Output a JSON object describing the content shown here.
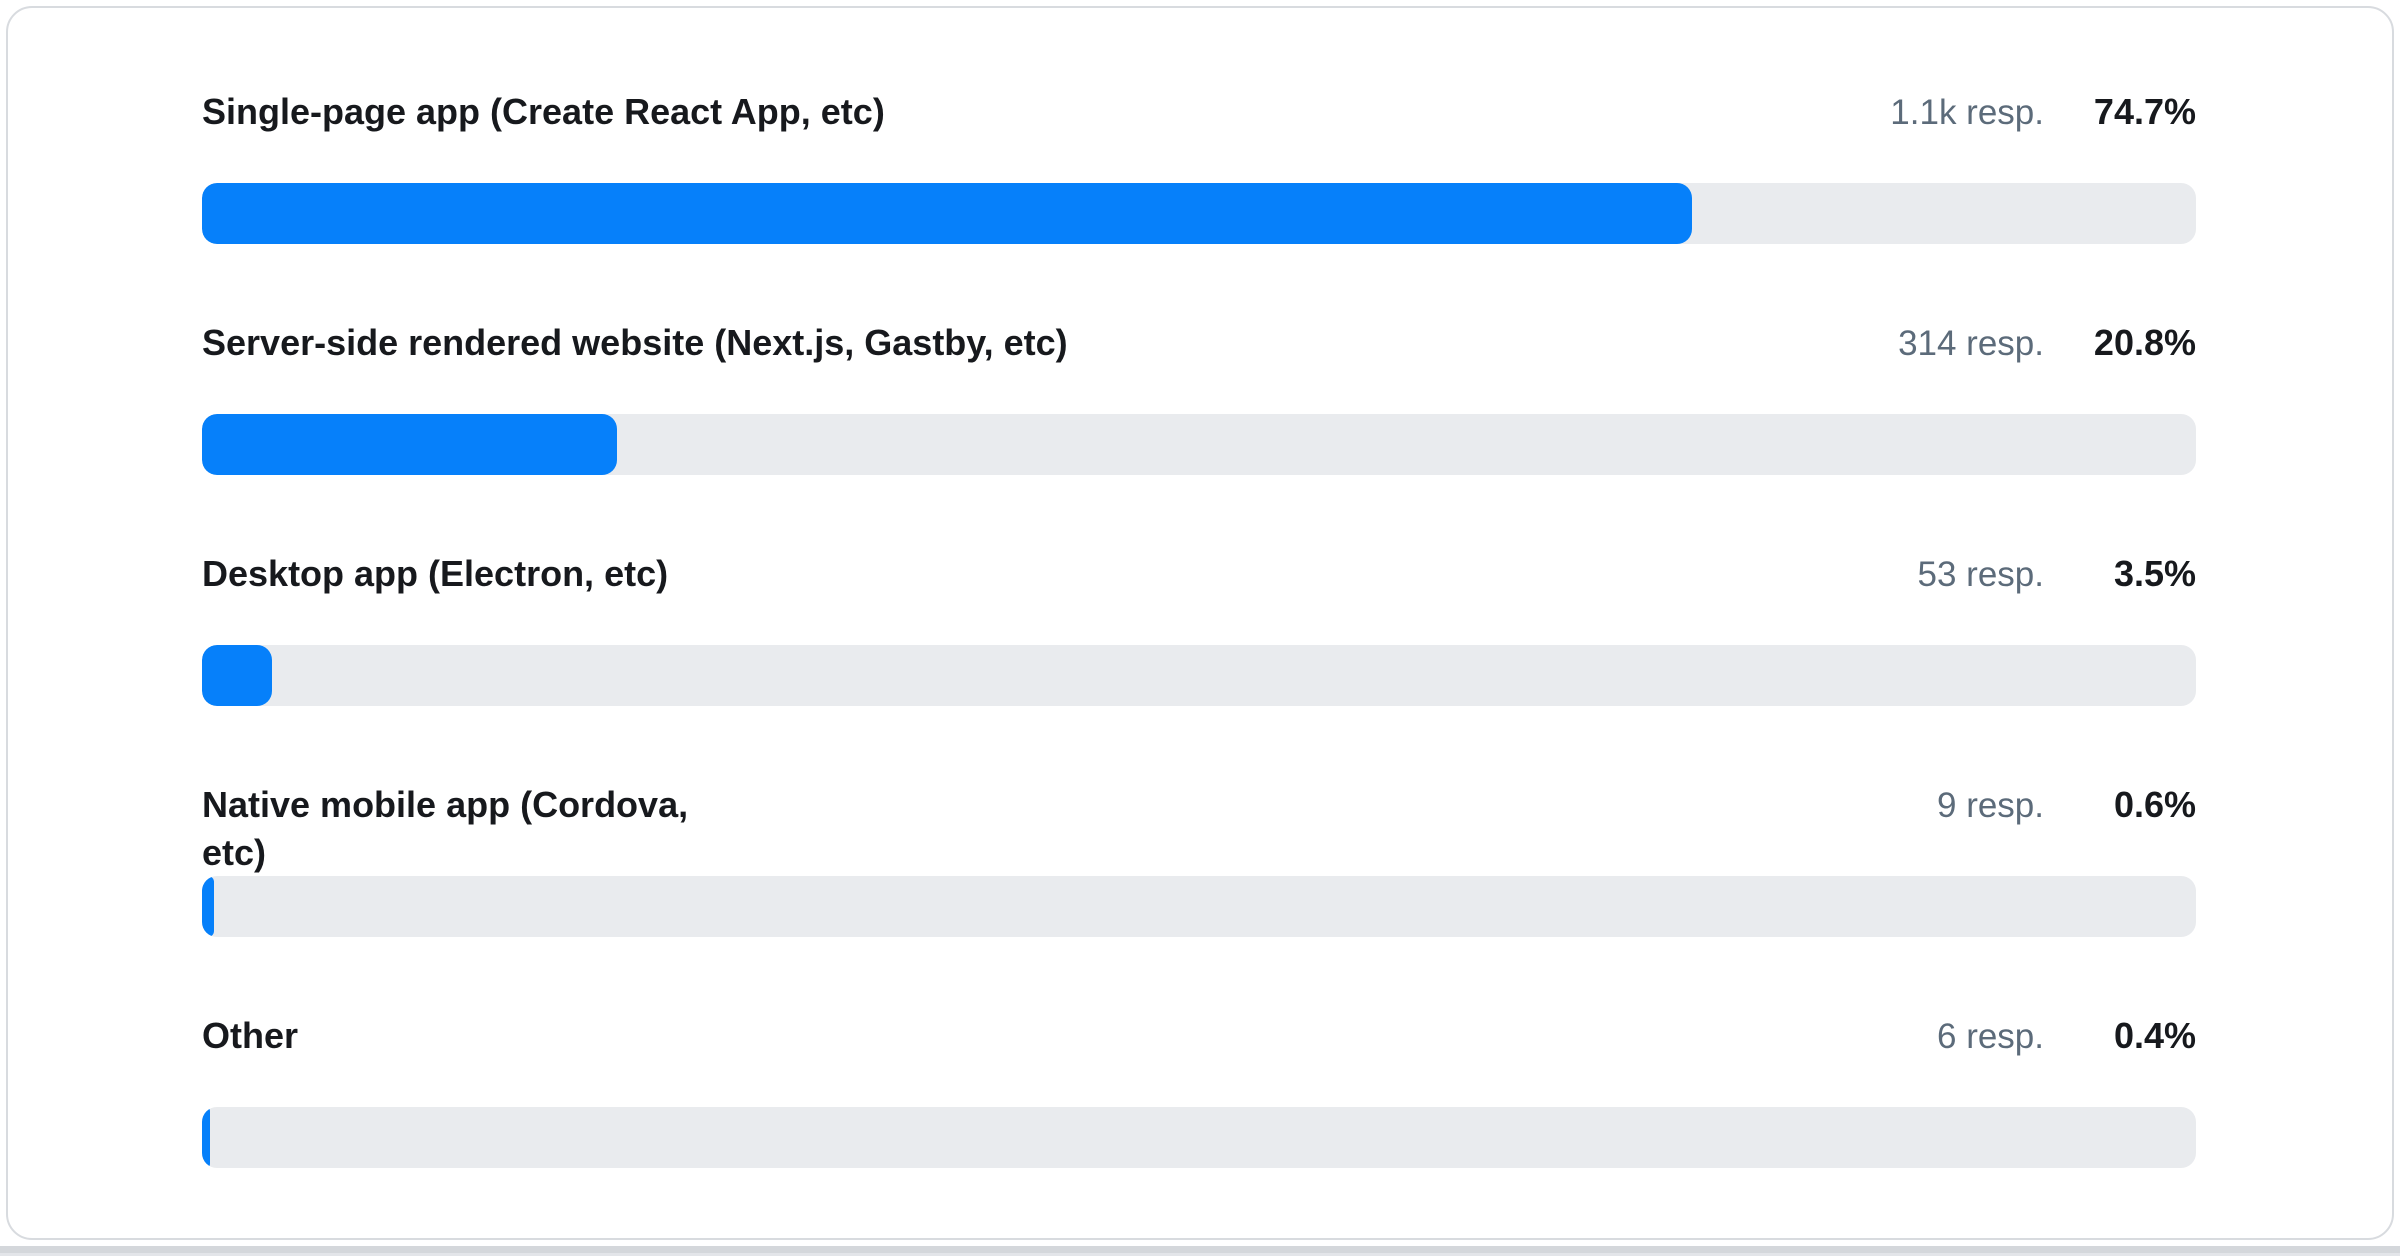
{
  "chart_data": {
    "type": "bar",
    "orientation": "horizontal",
    "title": "",
    "xlabel": "",
    "ylabel": "",
    "xlim": [
      0,
      100
    ],
    "unit": "%",
    "categories": [
      "Single-page app (Create React App, etc)",
      "Server-side rendered website (Next.js, Gastby, etc)",
      "Desktop app (Electron, etc)",
      "Native mobile app (Cordova, etc)",
      "Other"
    ],
    "values": [
      74.7,
      20.8,
      3.5,
      0.6,
      0.4
    ],
    "response_counts": [
      "1.1k",
      "314",
      "53",
      "9",
      "6"
    ],
    "bar_color": "#0680fa",
    "track_color": "#e9ebee"
  },
  "colors": {
    "bar_fill": "#0680fa",
    "bar_track": "#e9ebee",
    "label_text": "#17191d",
    "resp_text": "#5c6b7a",
    "pct_text": "#17191d",
    "card_border": "#d8dbdf",
    "bottom_strip": "#d4d7db"
  },
  "rows": [
    {
      "label": "Single-page app (Create React App, etc)",
      "responses": "1.1k resp.",
      "percent": "74.7%",
      "value": 74.7
    },
    {
      "label": "Server-side rendered website (Next.js, Gastby, etc)",
      "responses": "314 resp.",
      "percent": "20.8%",
      "value": 20.8
    },
    {
      "label": "Desktop app (Electron, etc)",
      "responses": "53 resp.",
      "percent": "3.5%",
      "value": 3.5
    },
    {
      "label": "Native mobile app (Cordova,\netc)",
      "responses": "9 resp.",
      "percent": "0.6%",
      "value": 0.6
    },
    {
      "label": "Other",
      "responses": "6 resp.",
      "percent": "0.4%",
      "value": 0.4
    }
  ]
}
